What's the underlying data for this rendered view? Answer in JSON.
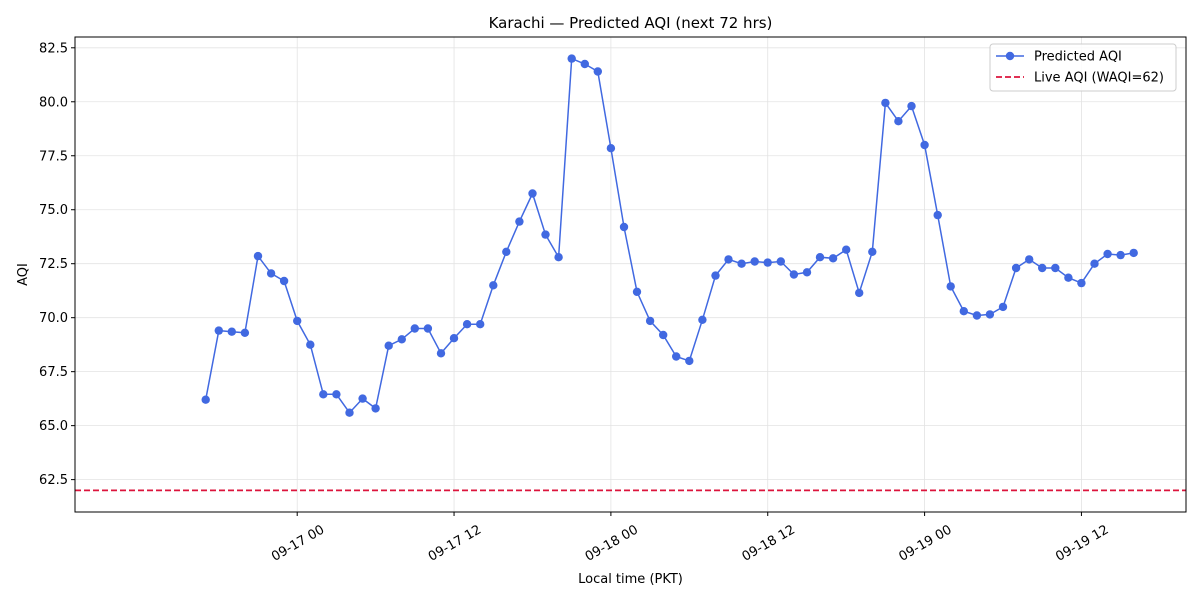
{
  "chart_data": {
    "type": "line",
    "title": "Karachi — Predicted AQI (next 72 hrs)",
    "xlabel": "Local time (PKT)",
    "ylabel": "AQI",
    "ylim": [
      61.0,
      83.0
    ],
    "y_ticks": [
      62.5,
      65.0,
      67.5,
      70.0,
      72.5,
      75.0,
      77.5,
      80.0,
      82.5
    ],
    "y_tick_labels": [
      "62.5",
      "65.0",
      "67.5",
      "70.0",
      "72.5",
      "75.0",
      "77.5",
      "80.0",
      "82.5"
    ],
    "x_range": [
      "2016-09-16 07:00",
      "2016-09-19 20:00"
    ],
    "x_ticks": [
      "09-17 00",
      "09-17 12",
      "09-18 00",
      "09-18 12",
      "09-19 00",
      "09-19 12"
    ],
    "x_tick_times": [
      "2016-09-17 00:00",
      "2016-09-17 12:00",
      "2016-09-18 00:00",
      "2016-09-18 12:00",
      "2016-09-19 00:00",
      "2016-09-19 12:00"
    ],
    "grid": true,
    "legend_position": "top-right",
    "colors": {
      "series": "#4169e1",
      "reference": "#dc143c"
    },
    "series": [
      {
        "name": "Predicted AQI",
        "x_start": "2016-09-16 17:00",
        "step_hours": 1,
        "values": [
          66.2,
          69.4,
          69.35,
          69.3,
          72.85,
          72.05,
          71.7,
          69.85,
          68.75,
          66.45,
          66.45,
          65.6,
          66.25,
          65.8,
          68.7,
          69.0,
          69.5,
          69.5,
          68.35,
          69.05,
          69.7,
          69.7,
          71.5,
          73.05,
          74.45,
          75.75,
          73.85,
          72.8,
          82.0,
          81.75,
          81.4,
          77.85,
          74.2,
          71.2,
          69.85,
          69.2,
          68.2,
          68.0,
          69.9,
          71.95,
          72.7,
          72.5,
          72.6,
          72.55,
          72.6,
          72.0,
          72.1,
          72.8,
          72.75,
          73.15,
          71.15,
          73.05,
          79.95,
          79.1,
          79.8,
          78.0,
          74.75,
          71.45,
          70.3,
          70.1,
          70.15,
          70.5,
          72.3,
          72.7,
          72.3,
          72.3,
          71.85,
          71.6,
          72.5,
          72.95,
          72.9,
          73.0
        ]
      }
    ],
    "reference_lines": [
      {
        "name": "Live AQI (WAQI=62)",
        "value": 62
      }
    ]
  }
}
